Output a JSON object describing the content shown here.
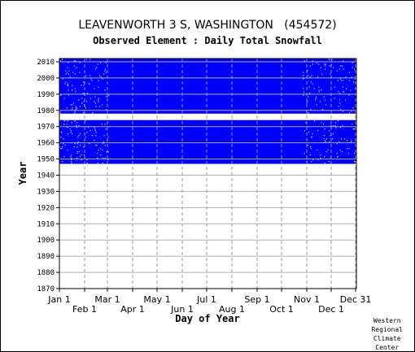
{
  "chart_data": {
    "type": "heatmap",
    "title": "LEAVENWORTH 3 S, WASHINGTON   (454572)",
    "subtitle": "Observed Element : Daily Total Snowfall",
    "xlabel": "Day of Year",
    "ylabel": "Year",
    "ylim": [
      1870,
      2012
    ],
    "yticks": [
      1870,
      1880,
      1890,
      1900,
      1910,
      1920,
      1930,
      1940,
      1950,
      1960,
      1970,
      1980,
      1990,
      2000,
      2010
    ],
    "xlim": [
      1,
      365
    ],
    "xticks_upper": [
      {
        "label": "Jan 1",
        "day": 1
      },
      {
        "label": "Mar 1",
        "day": 60
      },
      {
        "label": "May 1",
        "day": 121
      },
      {
        "label": "Jul 1",
        "day": 182
      },
      {
        "label": "Sep 1",
        "day": 244
      },
      {
        "label": "Nov 1",
        "day": 305
      },
      {
        "label": "Dec 31",
        "day": 365
      }
    ],
    "xticks_lower": [
      {
        "label": "Feb 1",
        "day": 32
      },
      {
        "label": "Apr 1",
        "day": 91
      },
      {
        "label": "Jun 1",
        "day": 152
      },
      {
        "label": "Aug 1",
        "day": 213
      },
      {
        "label": "Oct 1",
        "day": 274
      },
      {
        "label": "Dec 1",
        "day": 335
      }
    ],
    "data_color": "#0000ff",
    "grid": true,
    "observed_periods": [
      {
        "start_year": 1947,
        "end_year": 1973
      },
      {
        "start_year": 1978,
        "end_year": 2011
      }
    ]
  },
  "credit": {
    "lines": [
      "Western",
      "Regional",
      "Climate",
      "Center"
    ]
  }
}
